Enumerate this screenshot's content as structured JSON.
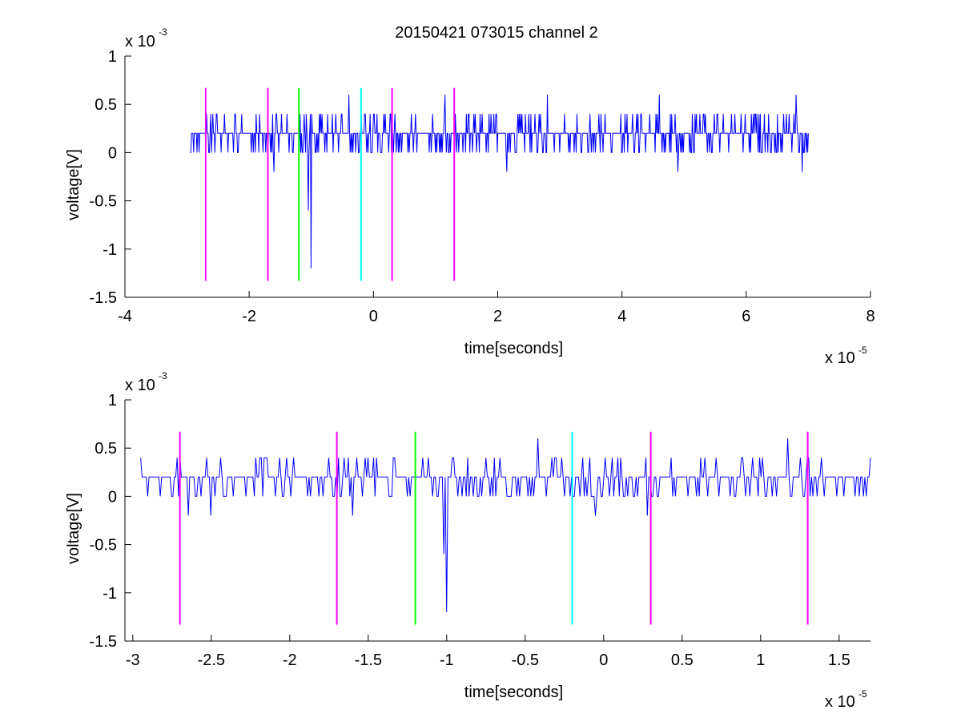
{
  "figure_title": "20150421 073015 channel 2",
  "colors": {
    "signal": "#0000ff",
    "magenta": "#ff00ff",
    "green": "#00ff00",
    "cyan": "#00ffff",
    "axes": "#000000",
    "background": "#ffffff"
  },
  "chart_data": [
    {
      "type": "line",
      "title": "20150421 073015 channel 2",
      "xlabel": "time[seconds]",
      "ylabel": "voltage[V]",
      "x_multiplier_label": "x 10",
      "x_multiplier_exp": "-5",
      "y_multiplier_label": "x 10",
      "y_multiplier_exp": "-3",
      "xlim": [
        -4,
        8
      ],
      "ylim": [
        -1.5,
        1
      ],
      "xticks": [
        -4,
        -2,
        0,
        2,
        4,
        6,
        8
      ],
      "xtick_labels": [
        "-4",
        "-2",
        "0",
        "2",
        "4",
        "6",
        "8"
      ],
      "yticks": [
        1,
        0.5,
        0,
        -0.5,
        -1,
        -1.5
      ],
      "ytick_labels": [
        "1",
        "0.5",
        "0",
        "-0.5",
        "-1",
        "-1.5"
      ],
      "grid": false,
      "signal": {
        "x_start": -2.95,
        "x_end": 7.0,
        "baseline": 0.2,
        "levels": [
          0,
          0.2,
          0.4
        ],
        "spikes": [
          {
            "x": -1.0,
            "y": -1.2
          },
          {
            "x": -1.05,
            "y": -0.6
          },
          {
            "x": -0.4,
            "y": 0.6
          },
          {
            "x": 1.15,
            "y": 0.6
          },
          {
            "x": 2.8,
            "y": 0.6
          },
          {
            "x": 4.6,
            "y": 0.6
          },
          {
            "x": 6.8,
            "y": 0.6
          },
          {
            "x": -1.6,
            "y": -0.2
          },
          {
            "x": 2.15,
            "y": -0.2
          },
          {
            "x": 4.9,
            "y": -0.2
          },
          {
            "x": 6.9,
            "y": -0.2
          }
        ]
      },
      "markers": [
        {
          "x": -2.7,
          "color": "magenta"
        },
        {
          "x": -1.7,
          "color": "magenta"
        },
        {
          "x": -1.2,
          "color": "green"
        },
        {
          "x": -0.2,
          "color": "cyan"
        },
        {
          "x": 0.3,
          "color": "magenta"
        },
        {
          "x": 1.3,
          "color": "magenta"
        }
      ],
      "marker_y_range": [
        -1.33,
        0.67
      ]
    },
    {
      "type": "line",
      "title": "",
      "xlabel": "time[seconds]",
      "ylabel": "voltage[V]",
      "x_multiplier_label": "x 10",
      "x_multiplier_exp": "-5",
      "y_multiplier_label": "x 10",
      "y_multiplier_exp": "-3",
      "xlim": [
        -3.05,
        1.7
      ],
      "ylim": [
        -1.5,
        1
      ],
      "xticks": [
        -3,
        -2.5,
        -2,
        -1.5,
        -1,
        -0.5,
        0,
        0.5,
        1,
        1.5
      ],
      "xtick_labels": [
        "-3",
        "-2.5",
        "-2",
        "-1.5",
        "-1",
        "-0.5",
        "0",
        "0.5",
        "1",
        "1.5"
      ],
      "yticks": [
        1,
        0.5,
        0,
        -0.5,
        -1,
        -1.5
      ],
      "ytick_labels": [
        "1",
        "0.5",
        "0",
        "-0.5",
        "-1",
        "-1.5"
      ],
      "grid": false,
      "signal": {
        "x_start": -2.95,
        "x_end": 1.7,
        "baseline": 0.2,
        "levels": [
          0,
          0.2,
          0.4
        ],
        "spikes": [
          {
            "x": -1.0,
            "y": -1.2
          },
          {
            "x": -1.02,
            "y": -0.6
          },
          {
            "x": -0.42,
            "y": 0.6
          },
          {
            "x": 1.17,
            "y": 0.6
          },
          {
            "x": -2.5,
            "y": -0.2
          },
          {
            "x": -1.6,
            "y": -0.2
          },
          {
            "x": -0.05,
            "y": -0.2
          },
          {
            "x": 0.28,
            "y": -0.2
          },
          {
            "x": -2.65,
            "y": -0.2
          }
        ]
      },
      "markers": [
        {
          "x": -2.7,
          "color": "magenta"
        },
        {
          "x": -1.7,
          "color": "magenta"
        },
        {
          "x": -1.2,
          "color": "green"
        },
        {
          "x": -0.2,
          "color": "cyan"
        },
        {
          "x": 0.3,
          "color": "magenta"
        },
        {
          "x": 1.3,
          "color": "magenta"
        }
      ],
      "marker_y_range": [
        -1.33,
        0.67
      ]
    }
  ]
}
